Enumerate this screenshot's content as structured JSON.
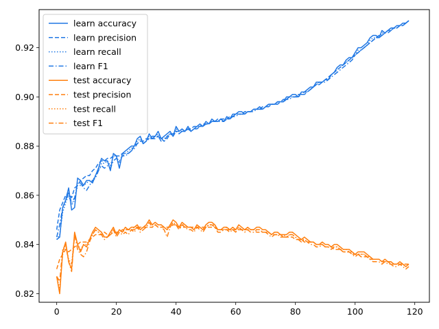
{
  "chart_data": {
    "type": "line",
    "title": "",
    "xlabel": "",
    "ylabel": "",
    "xlim": [
      -5.9,
      124.9
    ],
    "ylim": [
      0.8165,
      0.9355
    ],
    "grid": false,
    "legend_position": "top-left",
    "x_ticks": [
      0,
      20,
      40,
      60,
      80,
      100,
      120
    ],
    "y_ticks": [
      0.82,
      0.84,
      0.86,
      0.88,
      0.9,
      0.92
    ],
    "y_tick_labels": [
      "0.82",
      "0.84",
      "0.86",
      "0.88",
      "0.90",
      "0.92"
    ],
    "colors": {
      "learn": "#1f77e4",
      "test": "#ff7f0e"
    },
    "x_step": 1,
    "series": [
      {
        "name": "learn accuracy",
        "group": "learn",
        "linestyle": "solid",
        "values": [
          0.842,
          0.843,
          0.855,
          0.858,
          0.863,
          0.854,
          0.855,
          0.867,
          0.866,
          0.864,
          0.866,
          0.866,
          0.865,
          0.868,
          0.871,
          0.875,
          0.874,
          0.874,
          0.87,
          0.877,
          0.876,
          0.871,
          0.877,
          0.878,
          0.879,
          0.88,
          0.88,
          0.883,
          0.884,
          0.881,
          0.882,
          0.885,
          0.883,
          0.884,
          0.886,
          0.883,
          0.884,
          0.885,
          0.886,
          0.884,
          0.888,
          0.886,
          0.887,
          0.886,
          0.888,
          0.886,
          0.887,
          0.888,
          0.889,
          0.888,
          0.89,
          0.889,
          0.891,
          0.89,
          0.89,
          0.891,
          0.89,
          0.892,
          0.891,
          0.893,
          0.893,
          0.894,
          0.894,
          0.893,
          0.894,
          0.894,
          0.895,
          0.895,
          0.896,
          0.895,
          0.896,
          0.897,
          0.897,
          0.897,
          0.898,
          0.898,
          0.898,
          0.9,
          0.9,
          0.901,
          0.901,
          0.9,
          0.902,
          0.902,
          0.903,
          0.904,
          0.904,
          0.906,
          0.906,
          0.906,
          0.907,
          0.907,
          0.909,
          0.91,
          0.912,
          0.913,
          0.913,
          0.915,
          0.916,
          0.916,
          0.918,
          0.92,
          0.92,
          0.921,
          0.922,
          0.924,
          0.925,
          0.925,
          0.924,
          0.927,
          0.926,
          0.927,
          0.928,
          0.928,
          0.929,
          0.929,
          0.93,
          0.93,
          0.931
        ]
      },
      {
        "name": "learn precision",
        "group": "learn",
        "linestyle": "dashed",
        "values": [
          0.846,
          0.854,
          0.857,
          0.86,
          0.861,
          0.859,
          0.863,
          0.864,
          0.866,
          0.867,
          0.868,
          0.868,
          0.87,
          0.871,
          0.873,
          0.874,
          0.874,
          0.875,
          0.875,
          0.876,
          0.876,
          0.876,
          0.877,
          0.877,
          0.877,
          0.878,
          0.88,
          0.881,
          0.882,
          0.882,
          0.883,
          0.883,
          0.884,
          0.884,
          0.884,
          0.883,
          0.882,
          0.883,
          0.885,
          0.885,
          0.886,
          0.886,
          0.886,
          0.886,
          0.887,
          0.887,
          0.888,
          0.888,
          0.888,
          0.889,
          0.889,
          0.889,
          0.89,
          0.89,
          0.891,
          0.891,
          0.891,
          0.891,
          0.892,
          0.892,
          0.893,
          0.893,
          0.893,
          0.894,
          0.894,
          0.894,
          0.895,
          0.895,
          0.895,
          0.896,
          0.896,
          0.897,
          0.897,
          0.897,
          0.898,
          0.898,
          0.899,
          0.899,
          0.9,
          0.9,
          0.9,
          0.901,
          0.901,
          0.902,
          0.902,
          0.903,
          0.904,
          0.905,
          0.906,
          0.906,
          0.907,
          0.908,
          0.909,
          0.91,
          0.911,
          0.912,
          0.913,
          0.914,
          0.915,
          0.916,
          0.917,
          0.918,
          0.919,
          0.92,
          0.921,
          0.922,
          0.923,
          0.924,
          0.925,
          0.925,
          0.926,
          0.927,
          0.927,
          0.928,
          0.928,
          0.929,
          0.929,
          0.93,
          0.931
        ]
      },
      {
        "name": "learn recall",
        "group": "learn",
        "linestyle": "dotted",
        "values": [
          0.842,
          0.844,
          0.853,
          0.857,
          0.86,
          0.856,
          0.858,
          0.864,
          0.864,
          0.864,
          0.865,
          0.866,
          0.866,
          0.868,
          0.87,
          0.873,
          0.873,
          0.874,
          0.872,
          0.876,
          0.876,
          0.873,
          0.876,
          0.877,
          0.878,
          0.879,
          0.88,
          0.882,
          0.883,
          0.881,
          0.882,
          0.884,
          0.883,
          0.884,
          0.885,
          0.883,
          0.883,
          0.884,
          0.885,
          0.884,
          0.887,
          0.886,
          0.886,
          0.886,
          0.887,
          0.886,
          0.887,
          0.888,
          0.888,
          0.888,
          0.889,
          0.889,
          0.89,
          0.89,
          0.89,
          0.891,
          0.89,
          0.891,
          0.891,
          0.892,
          0.893,
          0.893,
          0.893,
          0.893,
          0.894,
          0.894,
          0.895,
          0.895,
          0.895,
          0.895,
          0.896,
          0.897,
          0.897,
          0.897,
          0.898,
          0.898,
          0.898,
          0.899,
          0.9,
          0.9,
          0.9,
          0.9,
          0.901,
          0.902,
          0.902,
          0.903,
          0.904,
          0.905,
          0.906,
          0.906,
          0.907,
          0.907,
          0.909,
          0.91,
          0.911,
          0.912,
          0.913,
          0.914,
          0.915,
          0.916,
          0.917,
          0.919,
          0.919,
          0.92,
          0.921,
          0.923,
          0.924,
          0.924,
          0.924,
          0.926,
          0.926,
          0.927,
          0.928,
          0.928,
          0.928,
          0.929,
          0.929,
          0.93,
          0.931
        ]
      },
      {
        "name": "learn F1",
        "group": "learn",
        "linestyle": "dashdot",
        "values": [
          0.843,
          0.848,
          0.855,
          0.858,
          0.861,
          0.857,
          0.859,
          0.865,
          0.865,
          0.863,
          0.862,
          0.864,
          0.866,
          0.867,
          0.87,
          0.872,
          0.871,
          0.872,
          0.871,
          0.874,
          0.875,
          0.874,
          0.876,
          0.876,
          0.877,
          0.878,
          0.879,
          0.881,
          0.882,
          0.881,
          0.882,
          0.883,
          0.883,
          0.883,
          0.884,
          0.882,
          0.882,
          0.884,
          0.885,
          0.884,
          0.886,
          0.885,
          0.886,
          0.886,
          0.887,
          0.886,
          0.887,
          0.887,
          0.888,
          0.888,
          0.889,
          0.889,
          0.89,
          0.89,
          0.89,
          0.89,
          0.89,
          0.891,
          0.891,
          0.892,
          0.892,
          0.893,
          0.893,
          0.893,
          0.894,
          0.894,
          0.894,
          0.895,
          0.895,
          0.895,
          0.896,
          0.896,
          0.897,
          0.897,
          0.897,
          0.898,
          0.898,
          0.899,
          0.899,
          0.9,
          0.9,
          0.9,
          0.901,
          0.901,
          0.902,
          0.903,
          0.904,
          0.905,
          0.905,
          0.906,
          0.906,
          0.907,
          0.908,
          0.909,
          0.91,
          0.911,
          0.912,
          0.913,
          0.914,
          0.915,
          0.917,
          0.918,
          0.919,
          0.92,
          0.921,
          0.922,
          0.923,
          0.924,
          0.924,
          0.925,
          0.926,
          0.926,
          0.927,
          0.928,
          0.928,
          0.929,
          0.929,
          0.93,
          0.931
        ]
      },
      {
        "name": "test accuracy",
        "group": "test",
        "linestyle": "solid",
        "values": [
          0.827,
          0.82,
          0.837,
          0.841,
          0.833,
          0.83,
          0.845,
          0.84,
          0.837,
          0.84,
          0.839,
          0.842,
          0.845,
          0.847,
          0.846,
          0.845,
          0.843,
          0.843,
          0.845,
          0.847,
          0.844,
          0.846,
          0.845,
          0.847,
          0.846,
          0.847,
          0.847,
          0.848,
          0.846,
          0.847,
          0.848,
          0.85,
          0.848,
          0.849,
          0.848,
          0.848,
          0.847,
          0.846,
          0.848,
          0.85,
          0.849,
          0.847,
          0.849,
          0.848,
          0.847,
          0.847,
          0.846,
          0.848,
          0.847,
          0.846,
          0.848,
          0.849,
          0.849,
          0.848,
          0.846,
          0.846,
          0.847,
          0.847,
          0.846,
          0.847,
          0.846,
          0.848,
          0.847,
          0.846,
          0.847,
          0.846,
          0.846,
          0.847,
          0.847,
          0.846,
          0.846,
          0.845,
          0.844,
          0.845,
          0.845,
          0.844,
          0.844,
          0.844,
          0.845,
          0.845,
          0.844,
          0.843,
          0.842,
          0.843,
          0.842,
          0.841,
          0.841,
          0.84,
          0.84,
          0.841,
          0.84,
          0.84,
          0.839,
          0.84,
          0.84,
          0.839,
          0.838,
          0.838,
          0.838,
          0.837,
          0.836,
          0.837,
          0.837,
          0.837,
          0.836,
          0.835,
          0.834,
          0.834,
          0.834,
          0.833,
          0.834,
          0.833,
          0.833,
          0.832,
          0.832,
          0.833,
          0.832,
          0.831,
          0.832
        ]
      },
      {
        "name": "test precision",
        "group": "test",
        "linestyle": "dashed",
        "values": [
          0.83,
          0.834,
          0.836,
          0.838,
          0.837,
          0.838,
          0.839,
          0.84,
          0.841,
          0.841,
          0.841,
          0.842,
          0.843,
          0.844,
          0.844,
          0.844,
          0.845,
          0.844,
          0.844,
          0.845,
          0.845,
          0.845,
          0.846,
          0.846,
          0.846,
          0.846,
          0.846,
          0.847,
          0.847,
          0.847,
          0.847,
          0.847,
          0.847,
          0.848,
          0.847,
          0.847,
          0.847,
          0.847,
          0.847,
          0.848,
          0.848,
          0.847,
          0.847,
          0.847,
          0.847,
          0.847,
          0.847,
          0.847,
          0.847,
          0.847,
          0.847,
          0.847,
          0.847,
          0.847,
          0.846,
          0.846,
          0.846,
          0.846,
          0.846,
          0.846,
          0.846,
          0.846,
          0.846,
          0.846,
          0.846,
          0.846,
          0.846,
          0.845,
          0.845,
          0.845,
          0.845,
          0.845,
          0.844,
          0.844,
          0.844,
          0.844,
          0.843,
          0.843,
          0.843,
          0.843,
          0.842,
          0.842,
          0.842,
          0.841,
          0.841,
          0.841,
          0.841,
          0.84,
          0.84,
          0.84,
          0.839,
          0.839,
          0.839,
          0.838,
          0.838,
          0.838,
          0.837,
          0.837,
          0.837,
          0.836,
          0.836,
          0.836,
          0.835,
          0.835,
          0.835,
          0.834,
          0.834,
          0.834,
          0.834,
          0.833,
          0.833,
          0.833,
          0.832,
          0.832,
          0.832,
          0.832,
          0.832,
          0.832,
          0.832
        ]
      },
      {
        "name": "test recall",
        "group": "test",
        "linestyle": "dotted",
        "values": [
          0.827,
          0.822,
          0.836,
          0.84,
          0.834,
          0.832,
          0.844,
          0.84,
          0.838,
          0.84,
          0.84,
          0.842,
          0.844,
          0.846,
          0.845,
          0.845,
          0.843,
          0.843,
          0.845,
          0.846,
          0.844,
          0.846,
          0.845,
          0.846,
          0.846,
          0.846,
          0.847,
          0.847,
          0.846,
          0.847,
          0.847,
          0.849,
          0.848,
          0.848,
          0.848,
          0.848,
          0.847,
          0.846,
          0.848,
          0.849,
          0.848,
          0.847,
          0.848,
          0.848,
          0.847,
          0.847,
          0.846,
          0.847,
          0.847,
          0.846,
          0.847,
          0.848,
          0.848,
          0.848,
          0.846,
          0.846,
          0.846,
          0.847,
          0.846,
          0.846,
          0.846,
          0.847,
          0.846,
          0.846,
          0.846,
          0.846,
          0.846,
          0.846,
          0.846,
          0.845,
          0.845,
          0.845,
          0.844,
          0.844,
          0.844,
          0.844,
          0.844,
          0.843,
          0.844,
          0.844,
          0.843,
          0.842,
          0.842,
          0.842,
          0.841,
          0.841,
          0.841,
          0.84,
          0.84,
          0.84,
          0.839,
          0.839,
          0.839,
          0.839,
          0.839,
          0.838,
          0.838,
          0.838,
          0.837,
          0.837,
          0.836,
          0.836,
          0.836,
          0.836,
          0.835,
          0.835,
          0.834,
          0.834,
          0.834,
          0.833,
          0.833,
          0.833,
          0.833,
          0.832,
          0.832,
          0.832,
          0.832,
          0.831,
          0.832
        ]
      },
      {
        "name": "test F1",
        "group": "test",
        "linestyle": "dashdot",
        "values": [
          0.827,
          0.825,
          0.838,
          0.84,
          0.833,
          0.829,
          0.844,
          0.838,
          0.836,
          0.835,
          0.837,
          0.841,
          0.844,
          0.846,
          0.845,
          0.844,
          0.842,
          0.843,
          0.844,
          0.846,
          0.843,
          0.845,
          0.844,
          0.845,
          0.844,
          0.846,
          0.845,
          0.847,
          0.845,
          0.846,
          0.847,
          0.849,
          0.847,
          0.848,
          0.847,
          0.847,
          0.846,
          0.843,
          0.847,
          0.849,
          0.848,
          0.846,
          0.848,
          0.847,
          0.846,
          0.846,
          0.845,
          0.847,
          0.846,
          0.845,
          0.847,
          0.848,
          0.848,
          0.847,
          0.845,
          0.845,
          0.846,
          0.846,
          0.845,
          0.846,
          0.845,
          0.847,
          0.846,
          0.845,
          0.846,
          0.845,
          0.845,
          0.846,
          0.846,
          0.845,
          0.845,
          0.844,
          0.843,
          0.844,
          0.844,
          0.843,
          0.843,
          0.843,
          0.844,
          0.844,
          0.843,
          0.842,
          0.841,
          0.842,
          0.841,
          0.84,
          0.84,
          0.839,
          0.839,
          0.84,
          0.839,
          0.839,
          0.838,
          0.839,
          0.839,
          0.838,
          0.837,
          0.837,
          0.837,
          0.836,
          0.835,
          0.836,
          0.836,
          0.836,
          0.835,
          0.834,
          0.833,
          0.833,
          0.833,
          0.832,
          0.833,
          0.832,
          0.832,
          0.831,
          0.831,
          0.832,
          0.831,
          0.83,
          0.831
        ]
      }
    ]
  }
}
